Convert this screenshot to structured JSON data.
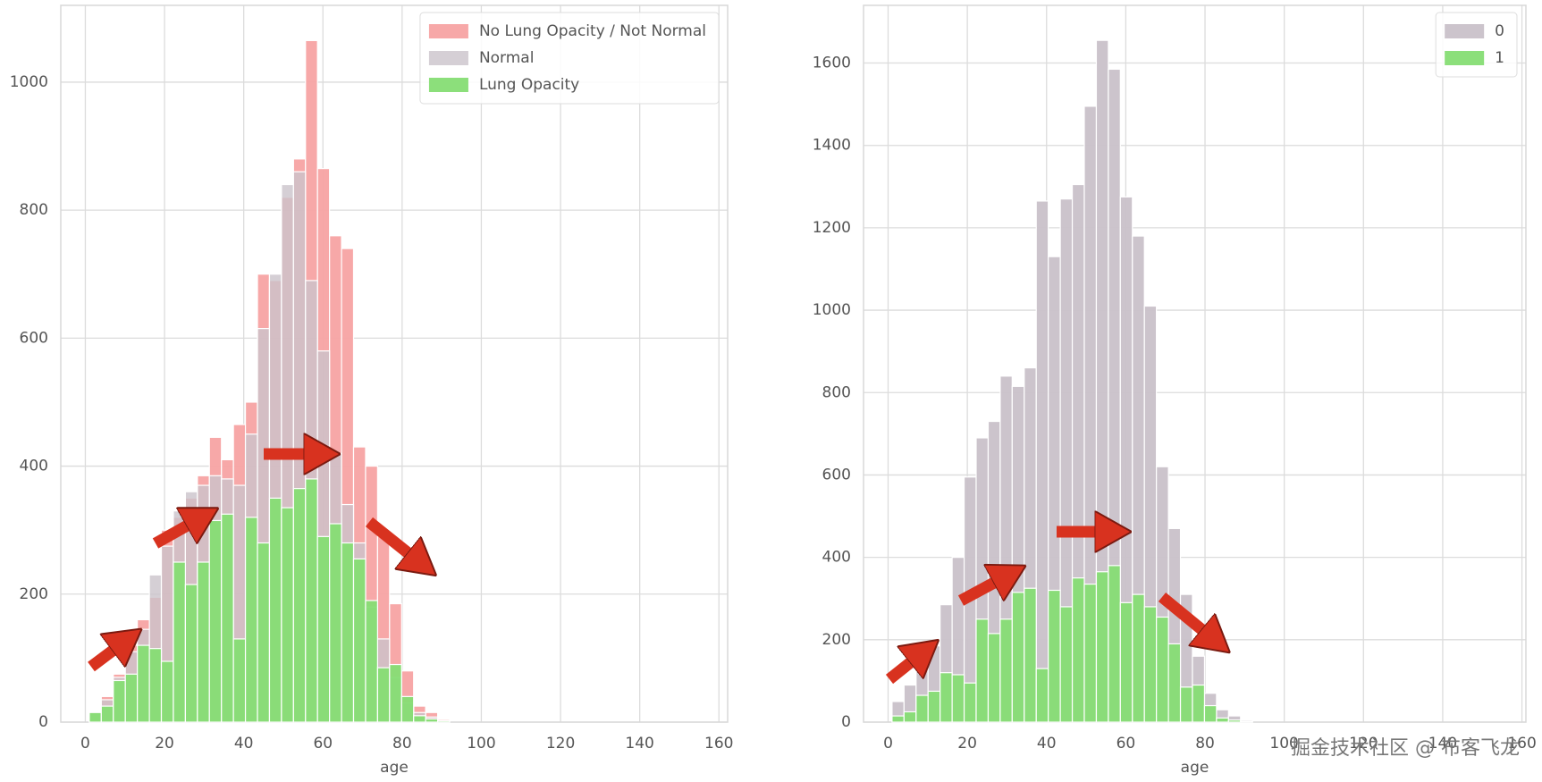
{
  "chart_data": [
    {
      "type": "histogram",
      "xlabel": "age",
      "legend": "upper right",
      "grid": true,
      "xlim": [
        -6.2,
        162.2
      ],
      "ylim": [
        0,
        1120
      ],
      "xticks": [
        0,
        20,
        40,
        60,
        80,
        100,
        120,
        140,
        160
      ],
      "yticks": [
        0,
        200,
        400,
        600,
        800,
        1000
      ],
      "bins": [
        1,
        4.03,
        7.07,
        10.1,
        13.13,
        16.17,
        19.2,
        22.23,
        25.27,
        28.3,
        31.33,
        34.37,
        37.4,
        40.43,
        43.47,
        46.5,
        49.53,
        52.57,
        55.6,
        58.63,
        61.67,
        64.7,
        67.73,
        70.77,
        73.8,
        76.83,
        79.87,
        82.9,
        85.93,
        88.97,
        92
      ],
      "series": [
        {
          "name": "No Lung Opacity / Not Normal",
          "color": "#f7a3a3",
          "opacity": 0.95,
          "values": [
            15,
            40,
            75,
            120,
            160,
            195,
            300,
            320,
            350,
            385,
            445,
            410,
            465,
            500,
            700,
            690,
            820,
            880,
            1065,
            865,
            760,
            740,
            430,
            400,
            290,
            185,
            80,
            25,
            15,
            5
          ]
        },
        {
          "name": "Normal",
          "color": "#cbc3cb",
          "opacity": 0.8,
          "values": [
            15,
            35,
            70,
            110,
            145,
            230,
            275,
            330,
            360,
            370,
            385,
            380,
            370,
            450,
            615,
            700,
            840,
            860,
            690,
            580,
            420,
            340,
            280,
            180,
            130,
            70,
            30,
            15,
            8,
            3
          ]
        },
        {
          "name": "Lung Opacity",
          "color": "#86dd74",
          "opacity": 0.95,
          "values": [
            15,
            25,
            65,
            75,
            120,
            115,
            95,
            250,
            215,
            250,
            315,
            325,
            130,
            320,
            280,
            350,
            335,
            365,
            380,
            290,
            310,
            280,
            255,
            190,
            85,
            90,
            40,
            10,
            5,
            2
          ]
        }
      ]
    },
    {
      "type": "histogram",
      "xlabel": "age",
      "legend": "upper right",
      "grid": true,
      "xlim": [
        -6.2,
        161
      ],
      "ylim": [
        0,
        1740
      ],
      "xticks": [
        0,
        20,
        40,
        60,
        80,
        100,
        120,
        140,
        160
      ],
      "yticks": [
        0,
        200,
        400,
        600,
        800,
        1000,
        1200,
        1400,
        1600
      ],
      "bins": [
        1,
        4.03,
        7.07,
        10.1,
        13.13,
        16.17,
        19.2,
        22.23,
        25.27,
        28.3,
        31.33,
        34.37,
        37.4,
        40.43,
        43.47,
        46.5,
        49.53,
        52.57,
        55.6,
        58.63,
        61.67,
        64.7,
        67.73,
        70.77,
        73.8,
        76.83,
        79.87,
        82.9,
        85.93,
        88.97,
        92
      ],
      "series": [
        {
          "name": "0",
          "color": "#c9c1c9",
          "opacity": 0.95,
          "values": [
            50,
            90,
            150,
            185,
            285,
            400,
            595,
            690,
            730,
            840,
            815,
            860,
            1265,
            1130,
            1270,
            1305,
            1495,
            1655,
            1585,
            1275,
            1180,
            1010,
            620,
            470,
            310,
            160,
            70,
            30,
            15,
            5
          ]
        },
        {
          "name": "1",
          "color": "#86dd74",
          "opacity": 0.95,
          "values": [
            15,
            25,
            65,
            75,
            120,
            115,
            95,
            250,
            215,
            250,
            315,
            325,
            130,
            320,
            280,
            350,
            335,
            365,
            380,
            290,
            310,
            280,
            255,
            190,
            85,
            90,
            40,
            10,
            5,
            2
          ]
        }
      ]
    }
  ],
  "watermark": "掘金技术社区 @ 布客飞龙"
}
